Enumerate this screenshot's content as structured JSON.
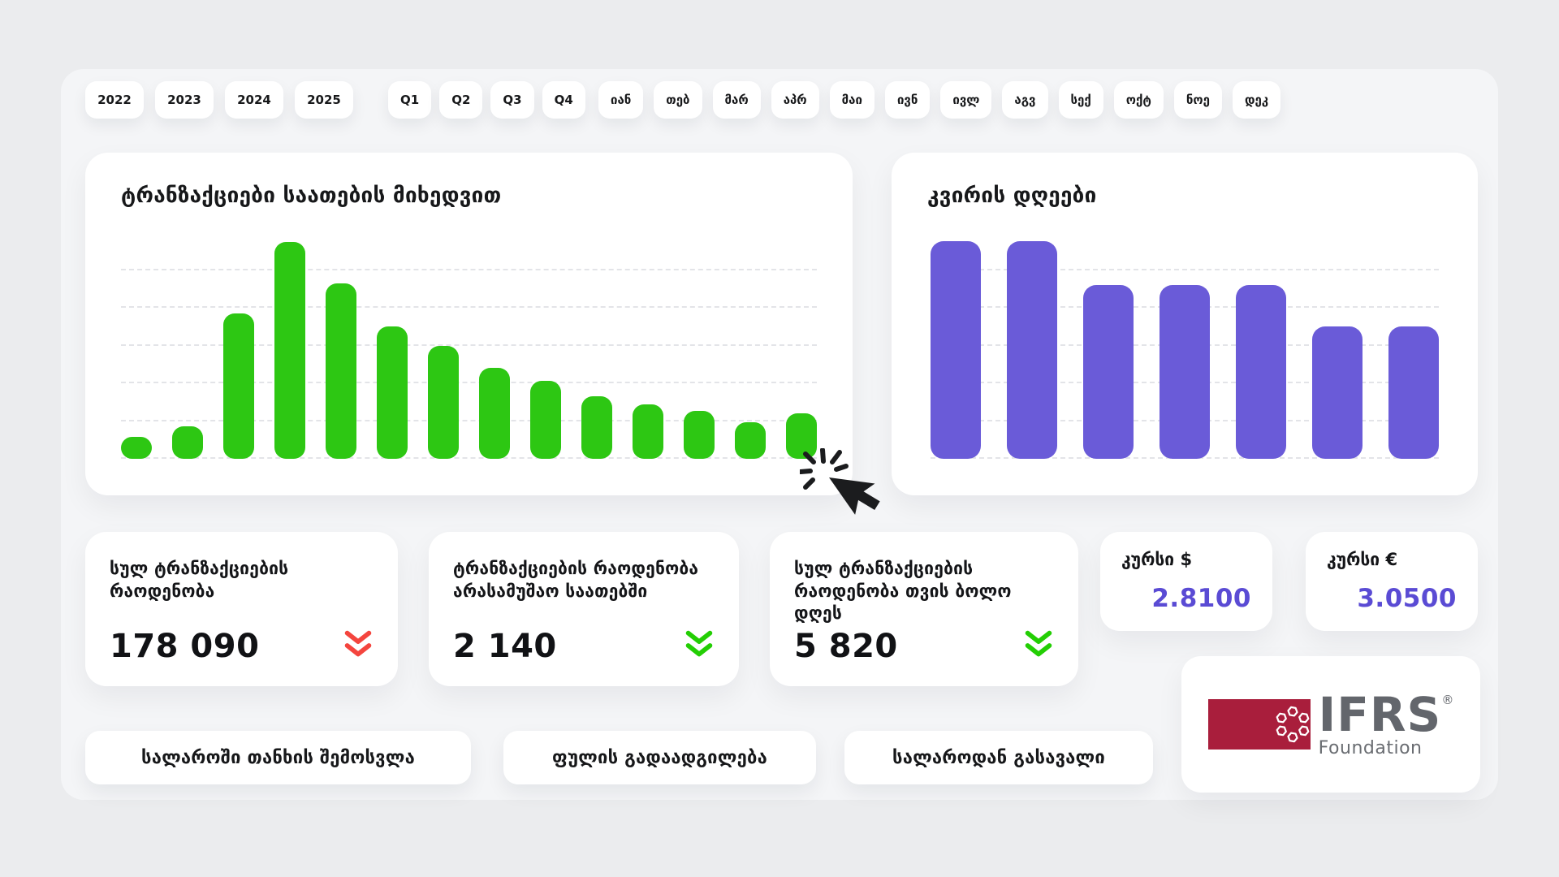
{
  "filters": {
    "years": [
      "2022",
      "2023",
      "2024",
      "2025"
    ],
    "quarters": [
      "Q1",
      "Q2",
      "Q3",
      "Q4"
    ],
    "months": [
      "იან",
      "თებ",
      "მარ",
      "აპრ",
      "მაი",
      "ივნ",
      "ივლ",
      "აგვ",
      "სექ",
      "ოქტ",
      "ნოე",
      "დეკ"
    ]
  },
  "chart_data": [
    {
      "type": "bar",
      "title": "ტრანზაქციები საათების მიხედვით",
      "values": [
        10,
        15,
        67,
        100,
        81,
        61,
        52,
        42,
        36,
        29,
        25,
        22,
        17,
        21
      ],
      "value_unit": "percent-of-max (chart has no numeric axis labels)",
      "bar_color": "#2DC713",
      "grid": "6 dashed horizontal gridlines, no axis tick labels",
      "legend": "none"
    },
    {
      "type": "bar",
      "title": "კვირის დღეები",
      "values": [
        100,
        100,
        80,
        80,
        80,
        61,
        61
      ],
      "value_unit": "percent-of-max (chart has no numeric axis labels)",
      "bar_color": "#6A5BD8",
      "grid": "6 dashed horizontal gridlines, no axis tick labels",
      "legend": "none"
    }
  ],
  "stats": [
    {
      "label": "სულ ტრანზაქციების რაოდენობა",
      "value": "178 090",
      "trend_icon": "double-chevron-down",
      "trend_color": "#F4453E"
    },
    {
      "label": "ტრანზაქციების რაოდენობა არასამუშაო საათებში",
      "value": "2 140",
      "trend_icon": "double-chevron-down",
      "trend_color": "#23CE04"
    },
    {
      "label": "სულ ტრანზაქციების რაოდენობა თვის ბოლო დღეს",
      "value": "5 820",
      "trend_icon": "double-chevron-down",
      "trend_color": "#23CE04"
    }
  ],
  "rates": [
    {
      "label": "კურსი $",
      "value": "2.8100",
      "value_color": "#5A4BD4"
    },
    {
      "label": "კურსი €",
      "value": "3.0500",
      "value_color": "#5A4BD4"
    }
  ],
  "actions": {
    "income": "სალაროში თანხის შემოსვლა",
    "transfer": "ფულის გადაადგილება",
    "outcome": "სალაროდან გასავალი"
  },
  "logo": {
    "brand": "IFRS",
    "registered": "®",
    "subtitle": "Foundation"
  }
}
